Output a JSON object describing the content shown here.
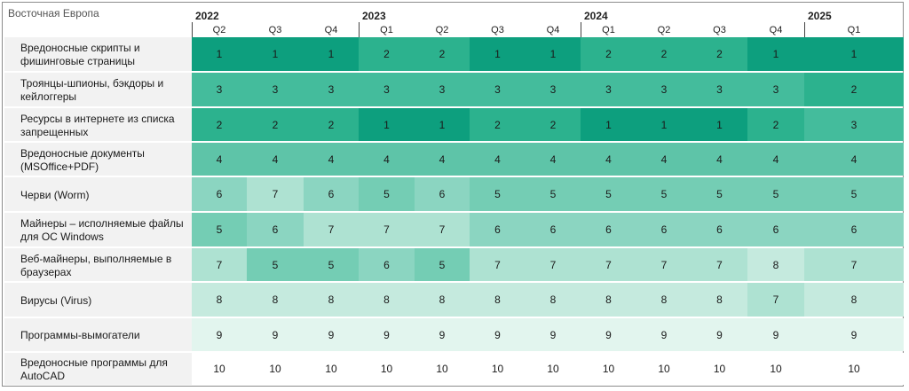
{
  "region": "Восточная Европа",
  "colors": {
    "1": "#0d9f7e",
    "2": "#2cb28e",
    "3": "#44bc9c",
    "4": "#5ec4a8",
    "5": "#74cdb4",
    "6": "#8bd5c1",
    "7": "#aee2d2",
    "8": "#c5eade",
    "9": "#e2f5ee",
    "10": "#ffffff"
  },
  "chart_data": {
    "type": "table",
    "title": "Восточная Европа",
    "years": [
      {
        "label": "2022",
        "span": 3
      },
      {
        "label": "2023",
        "span": 4
      },
      {
        "label": "2024",
        "span": 4
      },
      {
        "label": "2025",
        "span": 1
      }
    ],
    "quarters": [
      "Q2",
      "Q3",
      "Q4",
      "Q1",
      "Q2",
      "Q3",
      "Q4",
      "Q1",
      "Q2",
      "Q3",
      "Q4",
      "Q1"
    ],
    "rows": [
      {
        "label": "Вредоносные скрипты и фишинговые страницы",
        "values": [
          1,
          1,
          1,
          2,
          2,
          1,
          1,
          2,
          2,
          2,
          1,
          1
        ]
      },
      {
        "label": "Троянцы-шпионы, бэкдоры и кейлоггеры",
        "values": [
          3,
          3,
          3,
          3,
          3,
          3,
          3,
          3,
          3,
          3,
          3,
          2
        ]
      },
      {
        "label": "Ресурсы в интернете из списка запрещенных",
        "values": [
          2,
          2,
          2,
          1,
          1,
          2,
          2,
          1,
          1,
          1,
          2,
          3
        ]
      },
      {
        "label": "Вредоносные документы (MSOffice+PDF)",
        "values": [
          4,
          4,
          4,
          4,
          4,
          4,
          4,
          4,
          4,
          4,
          4,
          4
        ]
      },
      {
        "label": "Черви (Worm)",
        "values": [
          6,
          7,
          6,
          5,
          6,
          5,
          5,
          5,
          5,
          5,
          5,
          5
        ]
      },
      {
        "label": "Майнеры – исполняемые файлы для ОС Windows",
        "values": [
          5,
          6,
          7,
          7,
          7,
          6,
          6,
          6,
          6,
          6,
          6,
          6
        ]
      },
      {
        "label": "Веб-майнеры, выполняемые в браузерах",
        "values": [
          7,
          5,
          5,
          6,
          5,
          7,
          7,
          7,
          7,
          7,
          8,
          7
        ]
      },
      {
        "label": "Вирусы (Virus)",
        "values": [
          8,
          8,
          8,
          8,
          8,
          8,
          8,
          8,
          8,
          8,
          7,
          8
        ]
      },
      {
        "label": "Программы-вымогатели",
        "values": [
          9,
          9,
          9,
          9,
          9,
          9,
          9,
          9,
          9,
          9,
          9,
          9
        ]
      },
      {
        "label": "Вредоносные программы для AutoCAD",
        "values": [
          10,
          10,
          10,
          10,
          10,
          10,
          10,
          10,
          10,
          10,
          10,
          10
        ]
      }
    ]
  }
}
